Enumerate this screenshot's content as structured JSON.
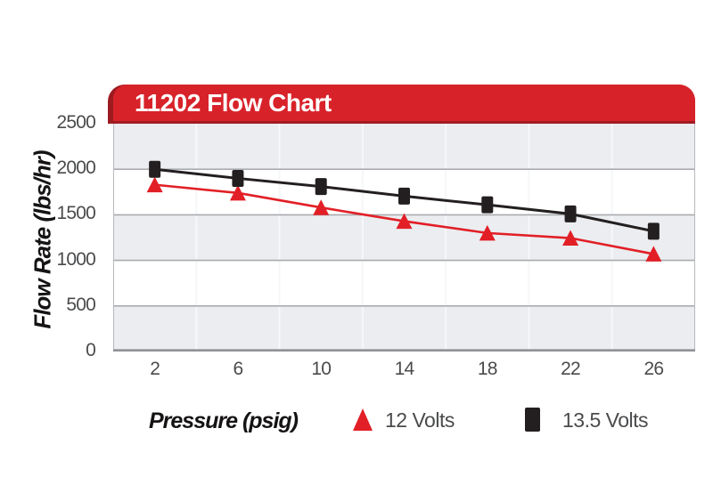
{
  "chart": {
    "banner_title": "11202 Flow Chart",
    "ylabel": "Flow Rate (lbs/hr)",
    "xlabel": "Pressure (psig)"
  },
  "chart_data": {
    "type": "line",
    "title": "11202 Flow Chart",
    "xlabel": "Pressure (psig)",
    "ylabel": "Flow Rate (lbs/hr)",
    "categories": [
      2,
      6,
      10,
      14,
      18,
      22,
      26
    ],
    "series": [
      {
        "name": "12 Volts",
        "marker": "triangle",
        "color": "#e21f26",
        "values": [
          1830,
          1740,
          1580,
          1430,
          1300,
          1245,
          1070
        ]
      },
      {
        "name": "13.5 Volts",
        "marker": "square",
        "color": "#231f20",
        "values": [
          2000,
          1900,
          1810,
          1705,
          1610,
          1510,
          1320
        ]
      }
    ],
    "ylim": [
      0,
      2500
    ],
    "ytick_step": 500,
    "grid": "horizontal-bands",
    "band_colors": [
      "#ebedf0",
      "#ffffff"
    ],
    "legend_position": "bottom"
  },
  "colors": {
    "banner_red": "#d8222a",
    "banner_dark_red": "#9d1b20",
    "series_red": "#e21f26",
    "series_black": "#231f20",
    "band_gray": "#ebedf0",
    "h_gridline": "#a9abae",
    "v_gridline": "#f6f7f9",
    "axis_line": "#8f9194",
    "plot_border": "#b7b9bc",
    "tick_text": "#4a4b4d"
  }
}
